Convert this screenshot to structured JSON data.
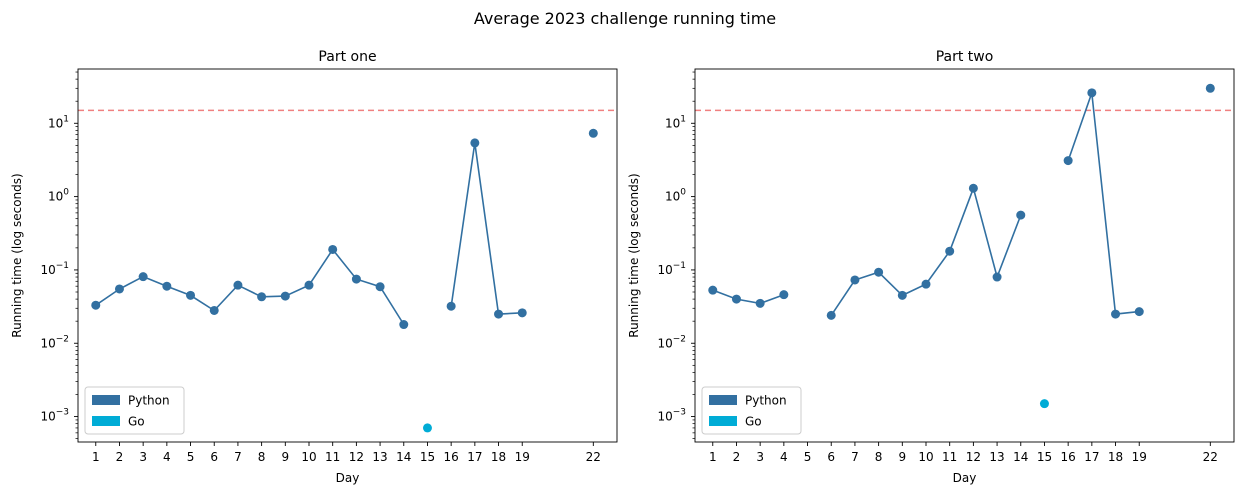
{
  "figure": {
    "suptitle": "Average 2023 challenge running time"
  },
  "legend_entries": [
    {
      "label": "Python",
      "color": "#3270a1"
    },
    {
      "label": "Go",
      "color": "#00acd6"
    }
  ],
  "chart_data": [
    {
      "type": "line",
      "title": "Part one",
      "xlabel": "Day",
      "ylabel": "Running time (log seconds)",
      "yscale": "log",
      "ylim": [
        0.00045,
        55
      ],
      "xlim": [
        0.25,
        23.0
      ],
      "xticks": [
        1,
        2,
        3,
        4,
        5,
        6,
        7,
        8,
        9,
        10,
        11,
        12,
        13,
        14,
        15,
        16,
        17,
        18,
        19,
        22
      ],
      "yticks": [
        0.001,
        0.01,
        0.1,
        1,
        10
      ],
      "ytick_labels": [
        {
          "base": "10",
          "exp": "−3"
        },
        {
          "base": "10",
          "exp": "−2"
        },
        {
          "base": "10",
          "exp": "−1"
        },
        {
          "base": "10",
          "exp": "0"
        },
        {
          "base": "10",
          "exp": "1"
        }
      ],
      "threshold_line": {
        "y": 15,
        "color": "#f08080",
        "style": "dashed"
      },
      "legend_position": "lower left",
      "series": [
        {
          "name": "Python",
          "color": "#3270a1",
          "segments": [
            [
              [
                1,
                0.033
              ],
              [
                2,
                0.055
              ],
              [
                3,
                0.081
              ],
              [
                4,
                0.06
              ],
              [
                5,
                0.045
              ],
              [
                6,
                0.028
              ],
              [
                7,
                0.062
              ],
              [
                8,
                0.043
              ],
              [
                9,
                0.044
              ],
              [
                10,
                0.062
              ],
              [
                11,
                0.19
              ],
              [
                12,
                0.075
              ],
              [
                13,
                0.059
              ],
              [
                14,
                0.018
              ]
            ],
            [
              [
                16,
                0.032
              ],
              [
                17,
                5.4
              ],
              [
                18,
                0.025
              ],
              [
                19,
                0.026
              ]
            ],
            [
              [
                22,
                7.3
              ]
            ]
          ]
        },
        {
          "name": "Go",
          "color": "#00acd6",
          "segments": [
            [
              [
                15,
                0.0007
              ]
            ]
          ]
        }
      ]
    },
    {
      "type": "line",
      "title": "Part two",
      "xlabel": "Day",
      "ylabel": "Running time (log seconds)",
      "yscale": "log",
      "ylim": [
        0.00045,
        55
      ],
      "xlim": [
        0.25,
        23.0
      ],
      "xticks": [
        1,
        2,
        3,
        4,
        5,
        6,
        7,
        8,
        9,
        10,
        11,
        12,
        13,
        14,
        15,
        16,
        17,
        18,
        19,
        22
      ],
      "yticks": [
        0.001,
        0.01,
        0.1,
        1,
        10
      ],
      "ytick_labels": [
        {
          "base": "10",
          "exp": "−3"
        },
        {
          "base": "10",
          "exp": "−2"
        },
        {
          "base": "10",
          "exp": "−1"
        },
        {
          "base": "10",
          "exp": "0"
        },
        {
          "base": "10",
          "exp": "1"
        }
      ],
      "threshold_line": {
        "y": 15,
        "color": "#f08080",
        "style": "dashed"
      },
      "legend_position": "lower left",
      "series": [
        {
          "name": "Python",
          "color": "#3270a1",
          "segments": [
            [
              [
                1,
                0.053
              ],
              [
                2,
                0.04
              ],
              [
                3,
                0.035
              ],
              [
                4,
                0.046
              ]
            ],
            [
              [
                6,
                0.024
              ],
              [
                7,
                0.073
              ],
              [
                8,
                0.093
              ],
              [
                9,
                0.045
              ],
              [
                10,
                0.064
              ],
              [
                11,
                0.18
              ],
              [
                12,
                1.3
              ],
              [
                13,
                0.08
              ],
              [
                14,
                0.56
              ]
            ],
            [
              [
                16,
                3.1
              ],
              [
                17,
                26
              ],
              [
                18,
                0.025
              ],
              [
                19,
                0.027
              ]
            ],
            [
              [
                22,
                30
              ]
            ]
          ]
        },
        {
          "name": "Go",
          "color": "#00acd6",
          "segments": [
            [
              [
                15,
                0.0015
              ]
            ]
          ]
        }
      ]
    }
  ]
}
